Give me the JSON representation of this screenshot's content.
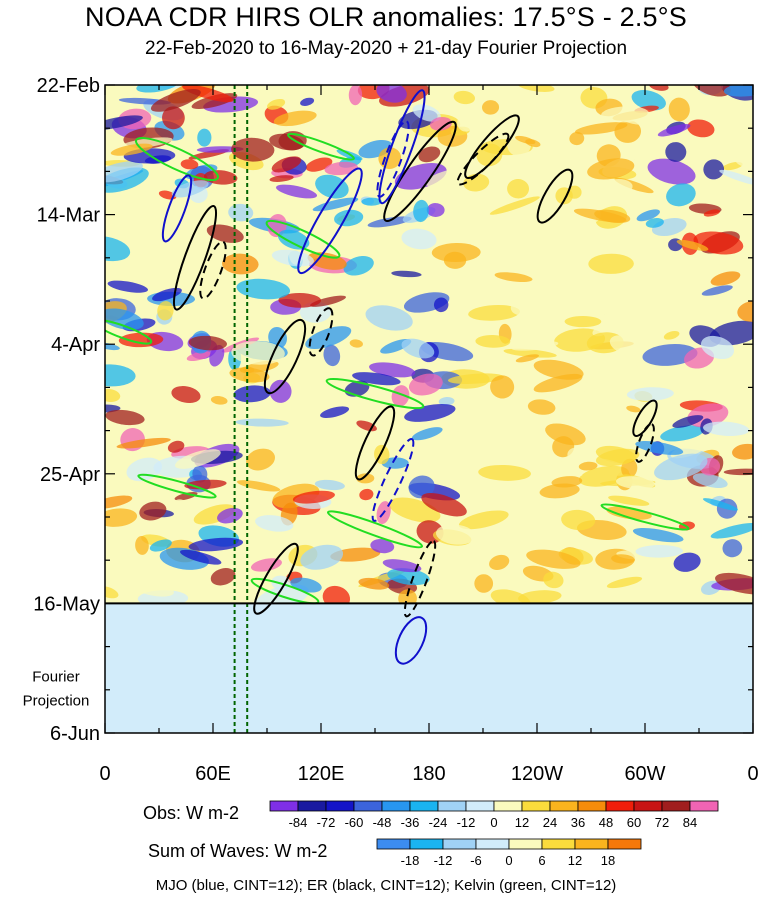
{
  "title": "NOAA CDR HIRS OLR anomalies: 17.5°S - 2.5°S",
  "subtitle": "22-Feb-2020 to 16-May-2020 + 21-day Fourier Projection",
  "footer": "MJO (blue, CINT=12); ER (black, CINT=12); Kelvin (green, CINT=12)",
  "legend_obs": {
    "label": "Obs: W m-2",
    "ticks": [
      "-84",
      "-72",
      "-60",
      "-48",
      "-36",
      "-24",
      "-12",
      "0",
      "12",
      "24",
      "36",
      "48",
      "60",
      "72",
      "84"
    ],
    "colors": [
      "#7f2fe6",
      "#1a1aa0",
      "#1414c8",
      "#3c64dc",
      "#2896f0",
      "#1ab4f0",
      "#a0d2f5",
      "#d2ecfa",
      "#fafabe",
      "#fadc3c",
      "#fab41e",
      "#f58c0a",
      "#f01e0a",
      "#c81414",
      "#a01e1e",
      "#f064b4"
    ]
  },
  "legend_waves": {
    "label": "Sum of Waves: W m-2",
    "ticks": [
      "-18",
      "-12",
      "-6",
      "0",
      "6",
      "12",
      "18"
    ],
    "colors": [
      "#3c8cf0",
      "#1ab4f0",
      "#a0d2f5",
      "#d2ecfa",
      "#fafabe",
      "#fadc3c",
      "#fab41e",
      "#f5780a"
    ]
  },
  "chart_data": {
    "type": "heatmap",
    "xlabel": "",
    "ylabel": "",
    "x_ticks": [
      "0",
      "60E",
      "120E",
      "180",
      "120W",
      "60W",
      "0"
    ],
    "x_tick_values": [
      0,
      60,
      120,
      180,
      240,
      300,
      360
    ],
    "xlim": [
      0,
      360
    ],
    "y_ticks": [
      "22-Feb",
      "14-Mar",
      "4-Apr",
      "25-Apr",
      "16-May",
      "6-Jun"
    ],
    "y_tick_days": [
      0,
      21,
      42,
      63,
      84,
      105
    ],
    "ylim_days": [
      0,
      105
    ],
    "projection_label": "Fourier Projection",
    "projection_start": "16-May",
    "vertical_reference_lines_longitude": [
      72,
      79
    ],
    "wave_contours": [
      {
        "wave": "MJO",
        "color": "blue",
        "cint": 12
      },
      {
        "wave": "ER",
        "color": "black",
        "cint": 12
      },
      {
        "wave": "Kelvin",
        "color": "green",
        "cint": 12
      }
    ]
  }
}
